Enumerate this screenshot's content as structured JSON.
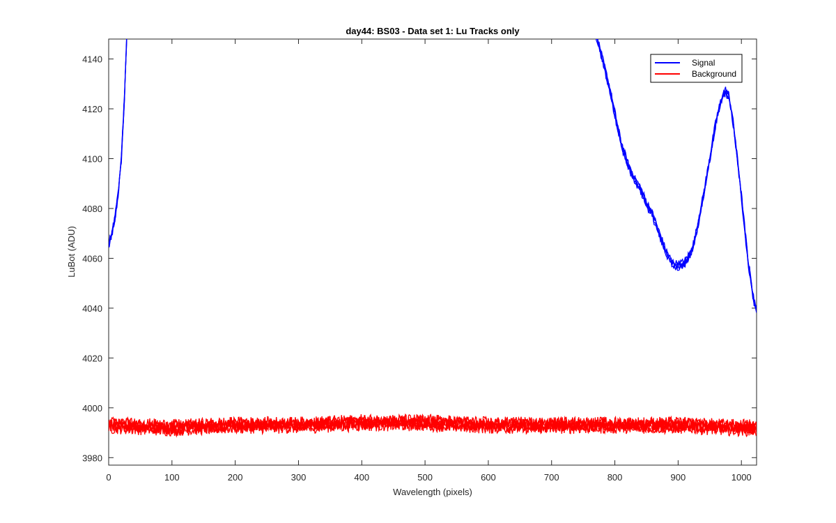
{
  "chart_data": {
    "type": "line",
    "title": "day44: BS03 - Data set 1: Lu Tracks only",
    "xlabel": "Wavelength (pixels)",
    "ylabel": "LuBot (ADU)",
    "xlim": [
      0,
      1024
    ],
    "ylim": [
      3977,
      4148
    ],
    "xticks": [
      0,
      100,
      200,
      300,
      400,
      500,
      600,
      700,
      800,
      900,
      1000
    ],
    "yticks": [
      3980,
      4000,
      4020,
      4040,
      4060,
      4080,
      4100,
      4120,
      4140
    ],
    "grid": false,
    "legend_position": "top-right",
    "series": [
      {
        "name": "Signal",
        "color": "#0000ff",
        "x": [
          0,
          5,
          10,
          15,
          20,
          25,
          28,
          30,
          770,
          780,
          790,
          800,
          810,
          820,
          830,
          840,
          850,
          860,
          870,
          880,
          890,
          900,
          910,
          920,
          925,
          930,
          940,
          950,
          960,
          970,
          975,
          980,
          985,
          990,
          1000,
          1010,
          1020,
          1024
        ],
        "y": [
          4065,
          4070,
          4076,
          4086,
          4100,
          4125,
          4145,
          4160,
          4150,
          4140,
          4130,
          4118,
          4106,
          4098,
          4092,
          4088,
          4082,
          4077,
          4070,
          4063,
          4058,
          4057,
          4058,
          4062,
          4066,
          4072,
          4085,
          4100,
          4115,
          4125,
          4127,
          4125,
          4118,
          4108,
          4085,
          4060,
          4042,
          4040
        ]
      },
      {
        "name": "Background",
        "color": "#ff0000",
        "x": [
          0,
          100,
          200,
          300,
          400,
          500,
          600,
          700,
          800,
          900,
          1000,
          1024
        ],
        "y": [
          3993,
          3992,
          3993,
          3993,
          3994,
          3994,
          3993,
          3993,
          3993,
          3993,
          3992,
          3992
        ]
      }
    ]
  }
}
